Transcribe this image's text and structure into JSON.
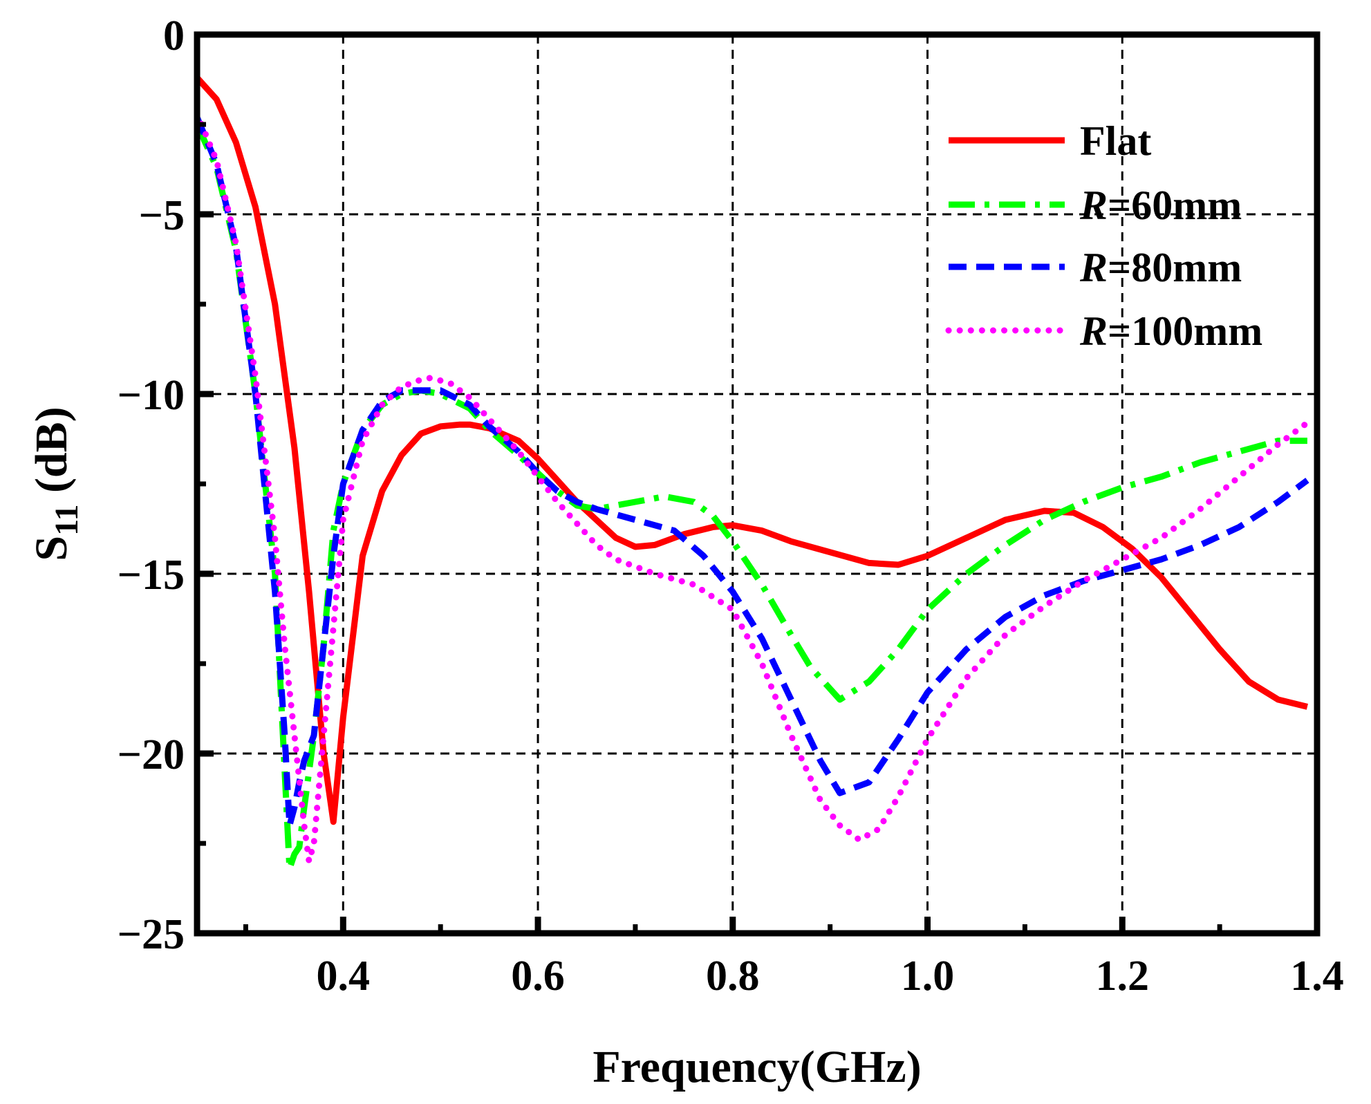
{
  "chart_data": {
    "type": "line",
    "title": "",
    "xlabel": "Frequency(GHz)",
    "ylabel": {
      "main": "S",
      "subscript": "11",
      "unit": " (dB)"
    },
    "xlim": [
      0.25,
      1.4
    ],
    "ylim": [
      -25,
      0
    ],
    "xticks": [
      {
        "value": 0.4,
        "label": "0.4"
      },
      {
        "value": 0.6,
        "label": "0.6"
      },
      {
        "value": 0.8,
        "label": "0.8"
      },
      {
        "value": 1.0,
        "label": "1.0"
      },
      {
        "value": 1.2,
        "label": "1.2"
      },
      {
        "value": 1.4,
        "label": "1.4"
      }
    ],
    "yticks": [
      {
        "value": 0,
        "label": "0"
      },
      {
        "value": -5,
        "label": "−5"
      },
      {
        "value": -10,
        "label": "−10"
      },
      {
        "value": -15,
        "label": "−15"
      },
      {
        "value": -20,
        "label": "−20"
      },
      {
        "value": -25,
        "label": "−25"
      }
    ],
    "grid": true,
    "legend_position": "top-right",
    "series": [
      {
        "name": "Flat",
        "name_prefix": "",
        "name_suffix": "Flat",
        "color": "#ff0000",
        "dash": "solid",
        "x": [
          0.25,
          0.27,
          0.29,
          0.31,
          0.33,
          0.35,
          0.365,
          0.38,
          0.39,
          0.4,
          0.42,
          0.44,
          0.46,
          0.48,
          0.5,
          0.52,
          0.53,
          0.55,
          0.58,
          0.6,
          0.62,
          0.64,
          0.66,
          0.68,
          0.7,
          0.72,
          0.75,
          0.78,
          0.8,
          0.83,
          0.86,
          0.9,
          0.94,
          0.97,
          1.0,
          1.04,
          1.08,
          1.12,
          1.15,
          1.18,
          1.21,
          1.24,
          1.27,
          1.3,
          1.33,
          1.36,
          1.39
        ],
        "y": [
          -1.2,
          -1.8,
          -3.0,
          -4.8,
          -7.5,
          -11.5,
          -15.5,
          -20.0,
          -21.9,
          -19.0,
          -14.5,
          -12.7,
          -11.7,
          -11.1,
          -10.9,
          -10.85,
          -10.85,
          -10.95,
          -11.3,
          -11.8,
          -12.4,
          -13.0,
          -13.5,
          -14.0,
          -14.25,
          -14.2,
          -13.9,
          -13.7,
          -13.65,
          -13.8,
          -14.1,
          -14.4,
          -14.7,
          -14.75,
          -14.5,
          -14.0,
          -13.5,
          -13.25,
          -13.3,
          -13.7,
          -14.3,
          -15.1,
          -16.1,
          -17.1,
          -18.0,
          -18.5,
          -18.7
        ]
      },
      {
        "name": "R=60mm",
        "name_prefix": "R",
        "name_suffix": "=60mm",
        "color": "#00ff00",
        "dash": "dashdot",
        "x": [
          0.25,
          0.27,
          0.29,
          0.31,
          0.33,
          0.34,
          0.345,
          0.35,
          0.355,
          0.36,
          0.37,
          0.38,
          0.39,
          0.4,
          0.42,
          0.44,
          0.46,
          0.48,
          0.5,
          0.53,
          0.55,
          0.58,
          0.6,
          0.62,
          0.64,
          0.66,
          0.7,
          0.73,
          0.76,
          0.78,
          0.8,
          0.83,
          0.86,
          0.88,
          0.91,
          0.94,
          0.97,
          1.0,
          1.04,
          1.08,
          1.12,
          1.16,
          1.2,
          1.24,
          1.28,
          1.32,
          1.36,
          1.39
        ],
        "y": [
          -2.5,
          -3.7,
          -6.0,
          -10.0,
          -15.0,
          -20.5,
          -23.2,
          -22.8,
          -22.6,
          -21.5,
          -19.5,
          -17.0,
          -13.8,
          -12.5,
          -11.0,
          -10.3,
          -10.0,
          -9.9,
          -10.0,
          -10.4,
          -11.0,
          -11.7,
          -12.2,
          -12.7,
          -13.1,
          -13.2,
          -13.0,
          -12.85,
          -13.0,
          -13.4,
          -14.1,
          -15.3,
          -16.7,
          -17.6,
          -18.5,
          -18.0,
          -17.1,
          -16.0,
          -15.0,
          -14.2,
          -13.5,
          -13.0,
          -12.6,
          -12.3,
          -11.9,
          -11.6,
          -11.3,
          -11.3
        ]
      },
      {
        "name": "R=80mm",
        "name_prefix": "R",
        "name_suffix": "=80mm",
        "color": "#0000ff",
        "dash": "dashed",
        "x": [
          0.25,
          0.27,
          0.29,
          0.31,
          0.33,
          0.34,
          0.345,
          0.35,
          0.355,
          0.36,
          0.37,
          0.38,
          0.39,
          0.4,
          0.42,
          0.44,
          0.46,
          0.48,
          0.5,
          0.53,
          0.55,
          0.58,
          0.6,
          0.62,
          0.64,
          0.66,
          0.7,
          0.74,
          0.77,
          0.8,
          0.83,
          0.86,
          0.89,
          0.91,
          0.94,
          0.97,
          1.0,
          1.04,
          1.08,
          1.12,
          1.16,
          1.2,
          1.24,
          1.28,
          1.32,
          1.36,
          1.39
        ],
        "y": [
          -2.3,
          -3.6,
          -5.9,
          -10.0,
          -15.5,
          -19.5,
          -22.0,
          -21.5,
          -20.8,
          -20.2,
          -19.5,
          -17.0,
          -14.5,
          -12.5,
          -11.0,
          -10.2,
          -9.9,
          -9.9,
          -9.9,
          -10.3,
          -10.9,
          -11.6,
          -12.2,
          -12.7,
          -13.0,
          -13.2,
          -13.5,
          -13.8,
          -14.5,
          -15.5,
          -16.8,
          -18.5,
          -20.2,
          -21.1,
          -20.8,
          -19.6,
          -18.3,
          -17.1,
          -16.2,
          -15.6,
          -15.2,
          -14.9,
          -14.6,
          -14.2,
          -13.7,
          -13.0,
          -12.4
        ]
      },
      {
        "name": "R=100mm",
        "name_prefix": "R",
        "name_suffix": "=100mm",
        "color": "#ff00ff",
        "dash": "dotted",
        "x": [
          0.25,
          0.27,
          0.29,
          0.31,
          0.33,
          0.34,
          0.35,
          0.36,
          0.365,
          0.37,
          0.38,
          0.39,
          0.4,
          0.42,
          0.44,
          0.46,
          0.48,
          0.49,
          0.51,
          0.53,
          0.55,
          0.58,
          0.6,
          0.62,
          0.64,
          0.66,
          0.68,
          0.72,
          0.76,
          0.8,
          0.83,
          0.86,
          0.89,
          0.91,
          0.93,
          0.95,
          0.97,
          1.0,
          1.04,
          1.08,
          1.12,
          1.16,
          1.2,
          1.24,
          1.28,
          1.32,
          1.36,
          1.39
        ],
        "y": [
          -2.2,
          -3.5,
          -5.8,
          -9.5,
          -14.0,
          -17.0,
          -19.5,
          -22.0,
          -23.0,
          -22.5,
          -19.5,
          -16.5,
          -13.5,
          -11.3,
          -10.3,
          -9.8,
          -9.6,
          -9.55,
          -9.7,
          -10.1,
          -10.7,
          -11.6,
          -12.3,
          -13.0,
          -13.6,
          -14.2,
          -14.6,
          -15.0,
          -15.3,
          -16.0,
          -17.5,
          -19.5,
          -21.3,
          -22.0,
          -22.4,
          -22.1,
          -21.2,
          -19.6,
          -17.9,
          -16.7,
          -15.9,
          -15.2,
          -14.6,
          -14.0,
          -13.2,
          -12.3,
          -11.4,
          -10.8
        ]
      }
    ]
  }
}
